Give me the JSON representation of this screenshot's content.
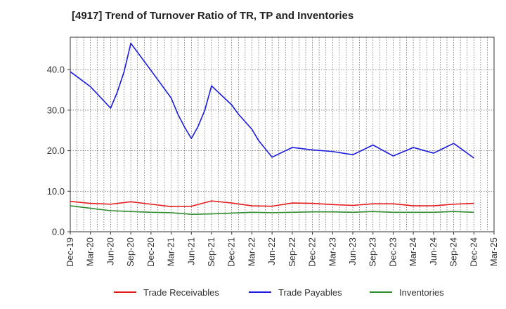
{
  "chart_data": {
    "type": "line",
    "title": "[4917]  Trend of Turnover Ratio of TR, TP and Inventories",
    "xlabel": "",
    "ylabel": "",
    "ylim": [
      0,
      48
    ],
    "y_ticks": [
      "0.0",
      "10.0",
      "20.0",
      "30.0",
      "40.0"
    ],
    "y_tick_values": [
      0,
      10,
      20,
      30,
      40
    ],
    "x_tick_labels": [
      "Dec-19",
      "Mar-20",
      "Jun-20",
      "Sep-20",
      "Dec-20",
      "Mar-21",
      "Jun-21",
      "Sep-21",
      "Dec-21",
      "Mar-22",
      "Jun-22",
      "Sep-22",
      "Dec-22",
      "Mar-23",
      "Jun-23",
      "Sep-23",
      "Dec-23",
      "Mar-24",
      "Jun-24",
      "Sep-24",
      "Dec-24",
      "Mar-25"
    ],
    "grid": true,
    "legend_position": "bottom",
    "series": [
      {
        "name": "Trade Receivables",
        "color": "#e41a1c",
        "points": [
          [
            0,
            7.5
          ],
          [
            3,
            7.0
          ],
          [
            6,
            6.8
          ],
          [
            9,
            7.4
          ],
          [
            12,
            6.8
          ],
          [
            15,
            6.2
          ],
          [
            18,
            6.3
          ],
          [
            21,
            7.6
          ],
          [
            24,
            7.1
          ],
          [
            27,
            6.4
          ],
          [
            30,
            6.3
          ],
          [
            33,
            7.1
          ],
          [
            36,
            7.0
          ],
          [
            39,
            6.7
          ],
          [
            42,
            6.5
          ],
          [
            45,
            6.9
          ],
          [
            48,
            6.9
          ],
          [
            51,
            6.4
          ],
          [
            54,
            6.4
          ],
          [
            57,
            6.8
          ],
          [
            60,
            7.0
          ]
        ]
      },
      {
        "name": "Trade Payables",
        "color": "#1a1adc",
        "points": [
          [
            0,
            39.5
          ],
          [
            3,
            35.8
          ],
          [
            6,
            30.5
          ],
          [
            7,
            34.5
          ],
          [
            8,
            39.5
          ],
          [
            9,
            46.5
          ],
          [
            12,
            39.8
          ],
          [
            15,
            33.0
          ],
          [
            16,
            29.0
          ],
          [
            17,
            25.8
          ],
          [
            18,
            23.0
          ],
          [
            19,
            26.0
          ],
          [
            20,
            30.0
          ],
          [
            21,
            36.0
          ],
          [
            24,
            31.3
          ],
          [
            25,
            29.0
          ],
          [
            27,
            25.3
          ],
          [
            28,
            22.5
          ],
          [
            30,
            18.4
          ],
          [
            33,
            20.8
          ],
          [
            36,
            20.2
          ],
          [
            39,
            19.8
          ],
          [
            42,
            19.0
          ],
          [
            45,
            21.4
          ],
          [
            48,
            18.7
          ],
          [
            51,
            20.8
          ],
          [
            54,
            19.4
          ],
          [
            57,
            21.8
          ],
          [
            60,
            18.2
          ]
        ]
      },
      {
        "name": "Inventories",
        "color": "#2e8b2e",
        "points": [
          [
            0,
            6.4
          ],
          [
            3,
            5.8
          ],
          [
            6,
            5.2
          ],
          [
            9,
            5.0
          ],
          [
            12,
            4.8
          ],
          [
            15,
            4.7
          ],
          [
            18,
            4.3
          ],
          [
            21,
            4.4
          ],
          [
            24,
            4.6
          ],
          [
            27,
            4.8
          ],
          [
            30,
            4.7
          ],
          [
            33,
            4.8
          ],
          [
            36,
            4.9
          ],
          [
            39,
            4.9
          ],
          [
            42,
            4.8
          ],
          [
            45,
            5.0
          ],
          [
            48,
            4.8
          ],
          [
            51,
            4.8
          ],
          [
            54,
            4.8
          ],
          [
            57,
            5.0
          ],
          [
            60,
            4.8
          ]
        ]
      }
    ]
  }
}
